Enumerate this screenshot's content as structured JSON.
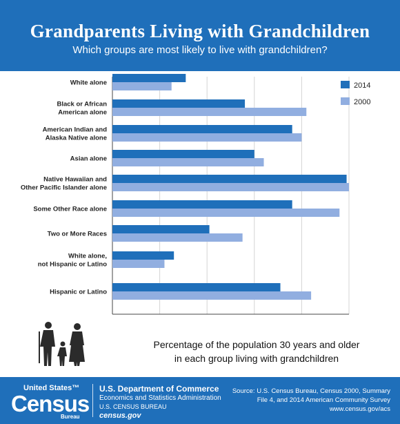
{
  "header": {
    "title": "Grandparents Living with Grandchildren",
    "subtitle": "Which groups are most likely to live with grandchildren?"
  },
  "colors": {
    "header_bg": "#1f6fba",
    "series_2014": "#1f6fba",
    "series_2000": "#91aee0"
  },
  "chart_data": {
    "type": "bar",
    "orientation": "horizontal",
    "categories": [
      [
        "White alone"
      ],
      [
        "Black or African",
        "American alone"
      ],
      [
        "American Indian and",
        "Alaska Native alone"
      ],
      [
        "Asian alone"
      ],
      [
        "Native Hawaiian and",
        "Other Pacific Islander alone"
      ],
      [
        "Some Other Race alone"
      ],
      [
        "Two or More Races"
      ],
      [
        "White alone,",
        "not Hispanic or Latino"
      ],
      [
        "Hispanic or Latino"
      ]
    ],
    "series": [
      {
        "name": "2014",
        "color": "#1f6fba",
        "values": [
          3.1,
          5.6,
          7.6,
          6.0,
          9.9,
          7.6,
          4.1,
          2.6,
          7.1
        ]
      },
      {
        "name": "2000",
        "color": "#91aee0",
        "values": [
          2.5,
          8.2,
          8.0,
          6.4,
          10.0,
          9.6,
          5.5,
          2.2,
          8.4
        ]
      }
    ],
    "xlim": [
      0,
      10
    ],
    "x_ticks": [
      "0%",
      "2%",
      "4%",
      "6%",
      "8%",
      "10%"
    ],
    "xlabel": "Percentage of the population 30 years and older in each group living with grandchildren",
    "grid": true,
    "legend": "top-right"
  },
  "footer": {
    "logo_top": "United States™",
    "logo_main": "Census",
    "logo_bureau": "Bureau",
    "dept": "U.S. Department of Commerce",
    "econ": "Economics and Statistics Administration",
    "bureau": "U.S. CENSUS BUREAU",
    "site": "census.gov",
    "source": "Source: U.S. Census Bureau, Census 2000, Summary File 4, and 2014 American Community Survey",
    "source_url": "www.census.gov/acs"
  }
}
